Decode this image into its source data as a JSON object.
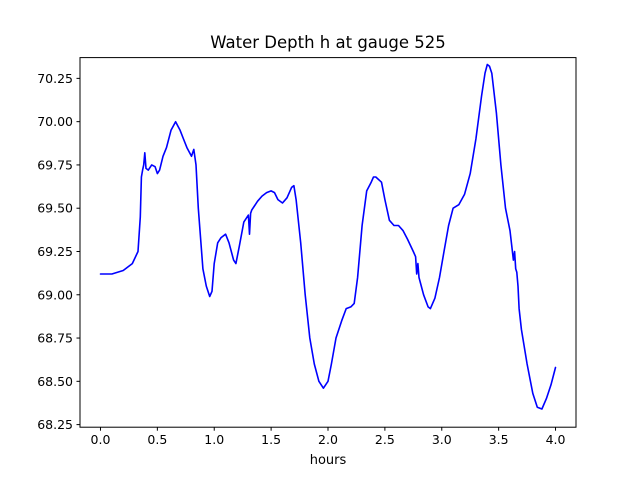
{
  "chart_data": {
    "type": "line",
    "title": "Water Depth h at gauge 525",
    "xlabel": "hours",
    "ylabel": "",
    "xlim": [
      -0.18,
      4.18
    ],
    "ylim": [
      68.235,
      70.37
    ],
    "x_ticks": [
      0.0,
      0.5,
      1.0,
      1.5,
      2.0,
      2.5,
      3.0,
      3.5,
      4.0
    ],
    "x_tick_labels": [
      "0.0",
      "0.5",
      "1.0",
      "1.5",
      "2.0",
      "2.5",
      "3.0",
      "3.5",
      "4.0"
    ],
    "y_ticks": [
      68.25,
      68.5,
      68.75,
      69.0,
      69.25,
      69.5,
      69.75,
      70.0,
      70.25
    ],
    "y_tick_labels": [
      "68.25",
      "68.50",
      "68.75",
      "69.00",
      "69.25",
      "69.50",
      "69.75",
      "70.00",
      "70.25"
    ],
    "grid": false,
    "series": [
      {
        "color": "#0000ff",
        "x": [
          0.0,
          0.1,
          0.2,
          0.28,
          0.33,
          0.35,
          0.36,
          0.37,
          0.38,
          0.39,
          0.4,
          0.42,
          0.45,
          0.48,
          0.5,
          0.52,
          0.55,
          0.58,
          0.62,
          0.66,
          0.7,
          0.73,
          0.76,
          0.8,
          0.82,
          0.84,
          0.86,
          0.9,
          0.93,
          0.96,
          0.98,
          1.0,
          1.03,
          1.06,
          1.1,
          1.13,
          1.17,
          1.19,
          1.22,
          1.26,
          1.3,
          1.31,
          1.32,
          1.33,
          1.35,
          1.38,
          1.42,
          1.46,
          1.5,
          1.53,
          1.56,
          1.6,
          1.64,
          1.68,
          1.7,
          1.72,
          1.76,
          1.8,
          1.84,
          1.88,
          1.92,
          1.96,
          2.0,
          2.03,
          2.07,
          2.12,
          2.16,
          2.2,
          2.23,
          2.26,
          2.3,
          2.34,
          2.38,
          2.4,
          2.42,
          2.47,
          2.5,
          2.54,
          2.58,
          2.62,
          2.66,
          2.7,
          2.75,
          2.77,
          2.78,
          2.79,
          2.8,
          2.84,
          2.88,
          2.9,
          2.94,
          2.98,
          3.02,
          3.06,
          3.1,
          3.15,
          3.2,
          3.25,
          3.3,
          3.35,
          3.38,
          3.4,
          3.42,
          3.44,
          3.48,
          3.52,
          3.56,
          3.6,
          3.63,
          3.64,
          3.65,
          3.66,
          3.67,
          3.68,
          3.7,
          3.75,
          3.8,
          3.84,
          3.88,
          3.92,
          3.96,
          4.0
        ],
        "y": [
          69.12,
          69.12,
          69.14,
          69.18,
          69.25,
          69.45,
          69.68,
          69.72,
          69.75,
          69.82,
          69.73,
          69.72,
          69.75,
          69.74,
          69.7,
          69.72,
          69.8,
          69.85,
          69.95,
          70.0,
          69.95,
          69.9,
          69.85,
          69.8,
          69.84,
          69.75,
          69.5,
          69.15,
          69.05,
          68.99,
          69.02,
          69.18,
          69.3,
          69.33,
          69.35,
          69.3,
          69.2,
          69.18,
          69.28,
          69.42,
          69.46,
          69.35,
          69.47,
          69.49,
          69.51,
          69.54,
          69.57,
          69.59,
          69.6,
          69.59,
          69.55,
          69.53,
          69.56,
          69.62,
          69.63,
          69.55,
          69.3,
          69.0,
          68.75,
          68.6,
          68.5,
          68.46,
          68.5,
          68.6,
          68.75,
          68.85,
          68.92,
          68.93,
          68.95,
          69.1,
          69.4,
          69.6,
          69.65,
          69.68,
          69.68,
          69.65,
          69.55,
          69.43,
          69.4,
          69.4,
          69.37,
          69.32,
          69.25,
          69.22,
          69.12,
          69.18,
          69.1,
          69.0,
          68.93,
          68.92,
          68.98,
          69.1,
          69.25,
          69.4,
          69.5,
          69.52,
          69.58,
          69.7,
          69.9,
          70.15,
          70.28,
          70.33,
          70.32,
          70.28,
          70.05,
          69.75,
          69.5,
          69.37,
          69.2,
          69.25,
          69.15,
          69.13,
          69.05,
          68.92,
          68.8,
          68.6,
          68.43,
          68.35,
          68.34,
          68.4,
          68.48,
          68.58
        ]
      }
    ]
  }
}
